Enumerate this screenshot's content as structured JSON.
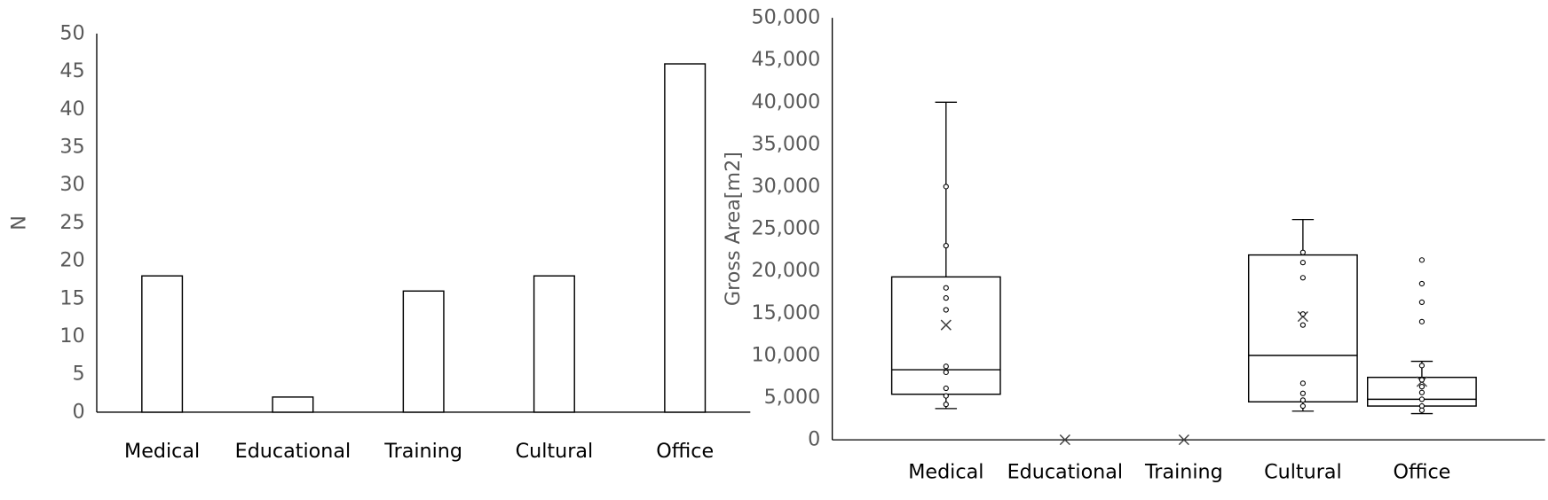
{
  "chart_data": [
    {
      "type": "bar",
      "ylabel": "N",
      "categories": [
        "Medical",
        "Educational",
        "Training",
        "Cultural",
        "Office"
      ],
      "values": [
        18,
        2,
        16,
        18,
        46
      ],
      "color": "#ffffff",
      "ylim": [
        0,
        50
      ],
      "yticks": [
        0,
        5,
        10,
        15,
        20,
        25,
        30,
        35,
        40,
        45,
        50
      ]
    },
    {
      "type": "box",
      "ylabel": "Gross Area[m2]",
      "categories": [
        "Medical",
        "Educational",
        "Training",
        "Cultural",
        "Office"
      ],
      "boxes": [
        {
          "low": 3700,
          "q1": 5400,
          "median": 8300,
          "q3": 19300,
          "high": 40000,
          "mean": 13600,
          "points": [
            30000,
            23000,
            18000,
            16800,
            15400,
            8700,
            8000,
            6100,
            5200,
            4200
          ]
        },
        {
          "low": null,
          "q1": null,
          "median": null,
          "q3": null,
          "high": null,
          "mean": 0,
          "points": []
        },
        {
          "low": null,
          "q1": null,
          "median": null,
          "q3": null,
          "high": null,
          "mean": 0,
          "points": []
        },
        {
          "low": 3400,
          "q1": 4500,
          "median": 10000,
          "q3": 21900,
          "high": 26100,
          "mean": 14600,
          "points": [
            22200,
            21000,
            19200,
            14900,
            13600,
            6700,
            5500,
            4700,
            4000
          ]
        },
        {
          "low": 3100,
          "q1": 4000,
          "median": 4800,
          "q3": 7400,
          "high": 9300,
          "mean": 6900,
          "points": [
            21300,
            18500,
            16300,
            14000,
            8800,
            7100,
            6300,
            5600,
            4800,
            4000,
            3500
          ]
        }
      ],
      "ylim": [
        0,
        50000
      ],
      "yticks": [
        0,
        {
          "value": 5000,
          "label": "5,000"
        },
        {
          "value": 10000,
          "label": "10,000"
        },
        {
          "value": 15000,
          "label": "15,000"
        },
        {
          "value": 20000,
          "label": "20,000"
        },
        {
          "value": 25000,
          "label": "25,000"
        },
        {
          "value": 30000,
          "label": "30,000"
        },
        {
          "value": 35000,
          "label": "35,000"
        },
        {
          "value": 40000,
          "label": "40,000"
        },
        {
          "value": 45000,
          "label": "45,000"
        },
        {
          "value": 50000,
          "label": "50,000"
        }
      ]
    }
  ]
}
